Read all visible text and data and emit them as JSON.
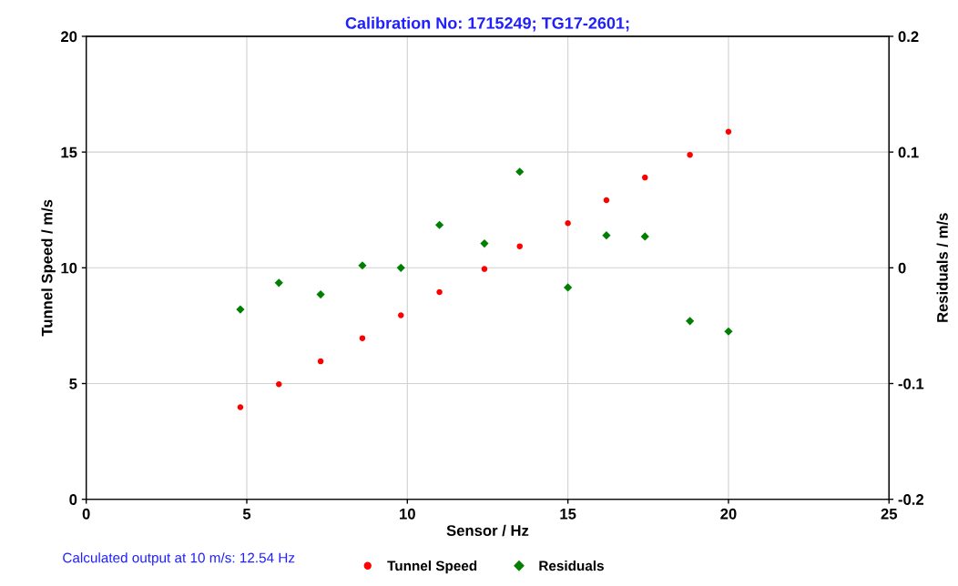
{
  "chart_data": {
    "type": "scatter",
    "title": "Calibration No: 1715249; TG17-2601;",
    "xlabel": "Sensor / Hz",
    "ylabel": "Tunnel Speed / m/s",
    "y2label": "Residuals / m/s",
    "annotations": [
      "Calculated output at 10 m/s: 12.54 Hz"
    ],
    "x": [
      4.8,
      6.0,
      7.3,
      8.6,
      9.8,
      11.0,
      12.4,
      13.5,
      15.0,
      16.2,
      17.4,
      18.8,
      20.0
    ],
    "series": [
      {
        "name": "Tunnel Speed",
        "color": "#ff0000",
        "marker": "circle",
        "values": [
          3.98,
          4.97,
          5.96,
          6.96,
          7.95,
          8.95,
          9.95,
          10.93,
          11.93,
          12.92,
          13.9,
          14.88,
          15.88
        ]
      },
      {
        "name": "Residuals",
        "color": "#008000",
        "marker": "diamond",
        "axis": "y2",
        "values": [
          -0.036,
          -0.013,
          -0.023,
          0.002,
          0.0,
          0.037,
          0.021,
          0.083,
          -0.017,
          0.028,
          0.027,
          -0.046,
          -0.055
        ]
      }
    ],
    "xlim": [
      0,
      25
    ],
    "xticks": [
      0,
      5,
      10,
      15,
      20,
      25
    ],
    "ylim": [
      0,
      20
    ],
    "yticks": [
      0,
      5,
      10,
      15,
      20
    ],
    "y2lim": [
      -0.2,
      0.2
    ],
    "y2ticks": [
      {
        "value": -0.2,
        "label": "-0.2"
      },
      {
        "value": -0.1,
        "label": "-0.1"
      },
      0,
      0.1,
      0.2
    ],
    "grid": true,
    "legend": "bottom"
  }
}
